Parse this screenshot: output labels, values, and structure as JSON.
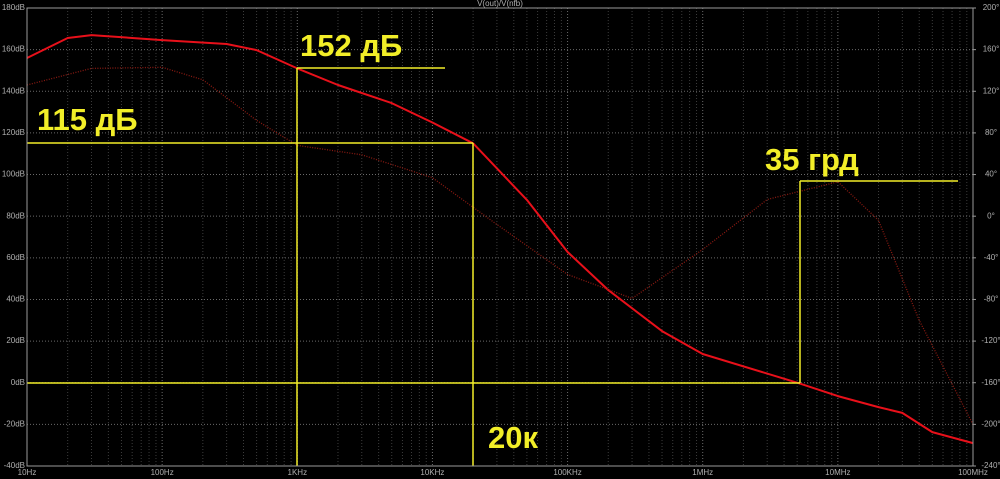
{
  "chart_data": {
    "type": "line",
    "title": "V(out)/V(nfb)",
    "xscale": "log",
    "xlim": [
      10,
      100000000
    ],
    "xticks": [
      {
        "value": 10,
        "label": "10Hz"
      },
      {
        "value": 100,
        "label": "100Hz"
      },
      {
        "value": 1000,
        "label": "1KHz"
      },
      {
        "value": 10000,
        "label": "10KHz"
      },
      {
        "value": 100000,
        "label": "100KHz"
      },
      {
        "value": 1000000,
        "label": "1MHz"
      },
      {
        "value": 10000000,
        "label": "10MHz"
      },
      {
        "value": 100000000,
        "label": "100MHz"
      }
    ],
    "ylim": [
      -40,
      180
    ],
    "yticks": [
      {
        "value": -40,
        "label": "-40dB"
      },
      {
        "value": -20,
        "label": "-20dB"
      },
      {
        "value": 0,
        "label": "0dB"
      },
      {
        "value": 20,
        "label": "20dB"
      },
      {
        "value": 40,
        "label": "40dB"
      },
      {
        "value": 60,
        "label": "60dB"
      },
      {
        "value": 80,
        "label": "80dB"
      },
      {
        "value": 100,
        "label": "100dB"
      },
      {
        "value": 120,
        "label": "120dB"
      },
      {
        "value": 140,
        "label": "140dB"
      },
      {
        "value": 160,
        "label": "160dB"
      },
      {
        "value": 180,
        "label": "180dB"
      }
    ],
    "y2lim": [
      -240,
      200
    ],
    "y2ticks": [
      {
        "value": -240,
        "label": "-240°"
      },
      {
        "value": -200,
        "label": "-200°"
      },
      {
        "value": -160,
        "label": "-160°"
      },
      {
        "value": -120,
        "label": "-120°"
      },
      {
        "value": -80,
        "label": "-80°"
      },
      {
        "value": -40,
        "label": "-40°"
      },
      {
        "value": 0,
        "label": "0°"
      },
      {
        "value": 40,
        "label": "40°"
      },
      {
        "value": 80,
        "label": "80°"
      },
      {
        "value": 120,
        "label": "120°"
      },
      {
        "value": 160,
        "label": "160°"
      },
      {
        "value": 200,
        "label": "200°"
      }
    ],
    "grid": true,
    "series": [
      {
        "color": "#e8101a",
        "style": "solid",
        "x": [
          10,
          20,
          30,
          100,
          300,
          500,
          1000,
          2000,
          5000,
          10000,
          20000,
          50000,
          100000,
          200000,
          500000,
          1000000,
          5000000,
          10000000,
          20000000,
          30000000,
          50000000,
          100000000
        ],
        "values": [
          156,
          165.6,
          167,
          164.6,
          162.7,
          159.8,
          151,
          143,
          134.3,
          125,
          115,
          87.8,
          62.8,
          44.5,
          24.8,
          13.8,
          0,
          -6.4,
          -11.7,
          -14.5,
          -23.7,
          -29
        ]
      },
      {
        "color": "#8a1a12",
        "style": "dotted",
        "axis": "y2",
        "x": [
          10,
          30,
          100,
          200,
          500,
          1000,
          3000,
          10000,
          30000,
          100000,
          300000,
          1000000,
          3000000,
          10000000,
          20000000,
          40000000,
          100000000
        ],
        "values": [
          126,
          142,
          143,
          131,
          92,
          68,
          59,
          37,
          -8,
          -56,
          -79,
          -32,
          16,
          33,
          -4,
          -100,
          -200
        ]
      }
    ],
    "annotations": [
      "152 дБ",
      "115 дБ",
      "35 грд",
      "20к"
    ]
  }
}
